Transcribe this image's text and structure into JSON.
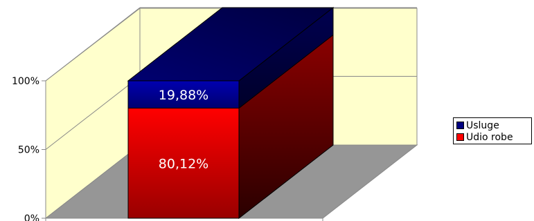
{
  "chart_data": {
    "type": "bar",
    "stacked": "percent",
    "style": "3d",
    "categories": [
      ""
    ],
    "series": [
      {
        "name": "Udio robe",
        "values": [
          80.12
        ],
        "label": "80,12%",
        "color": "#ff0000"
      },
      {
        "name": "Usluge",
        "values": [
          19.88
        ],
        "label": "19,88%",
        "color": "#000080"
      }
    ],
    "yticks": [
      "0%",
      "50%",
      "100%"
    ],
    "ylim": [
      0,
      100
    ],
    "grid": true,
    "legend_position": "right",
    "colors": {
      "walls": "#ffffcc",
      "floor": "#969696",
      "gridline": "#888888"
    }
  }
}
